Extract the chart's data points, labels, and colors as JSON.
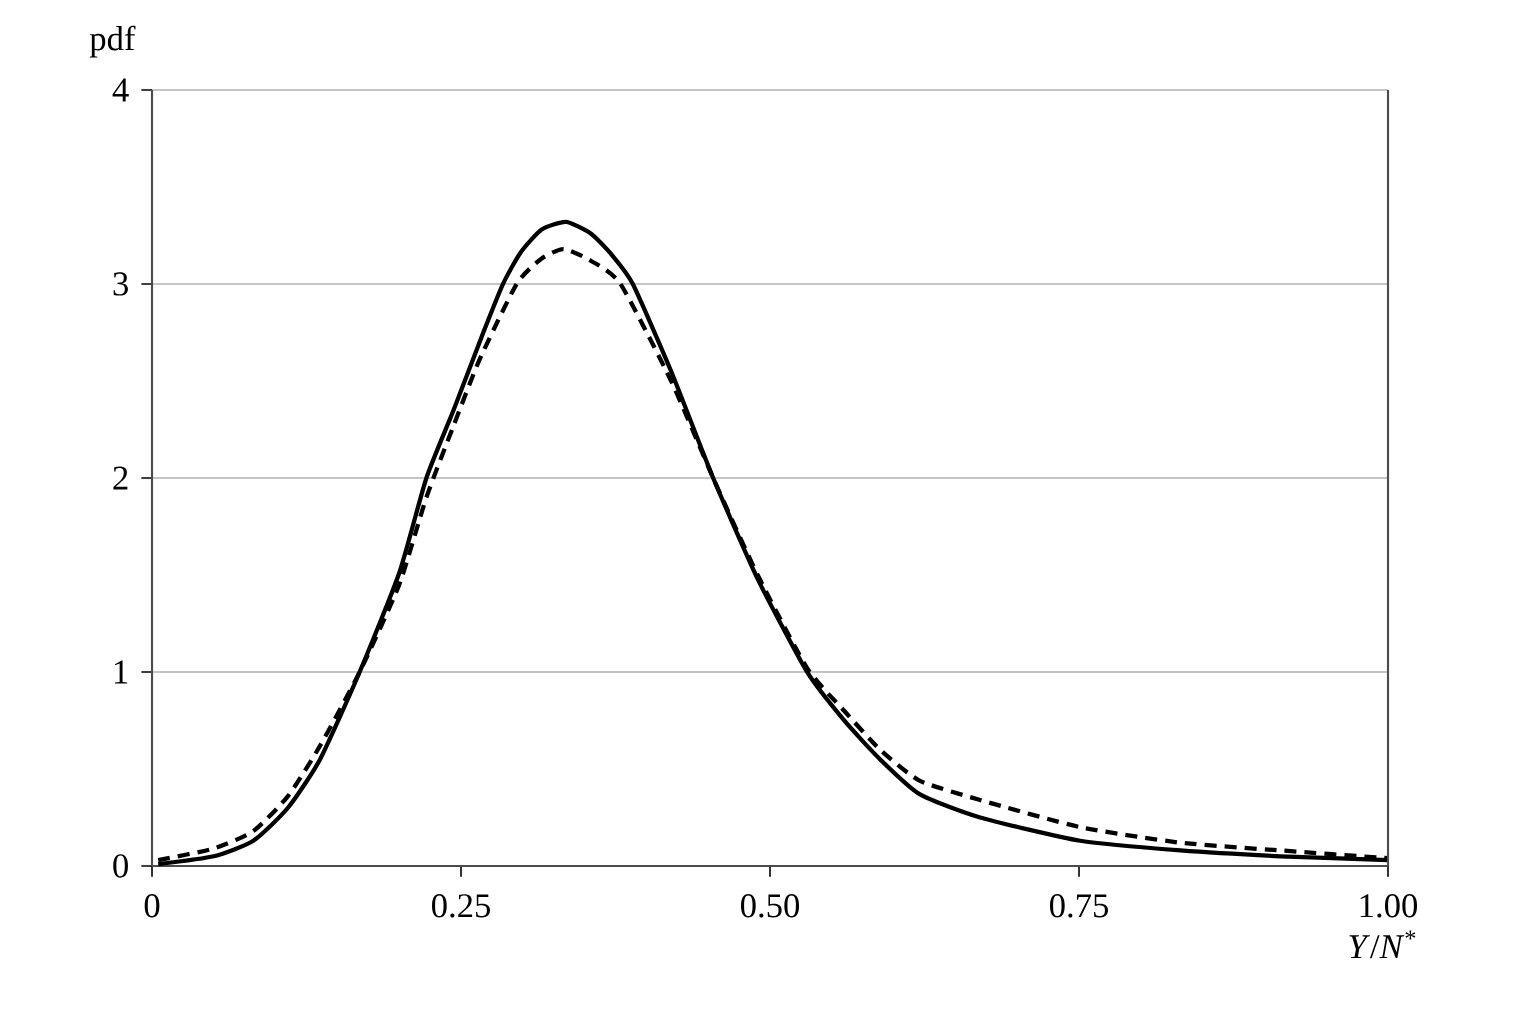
{
  "chart_data": {
    "type": "line",
    "xlabel": "*Y*/*N*$^{*}$",
    "ylabel": "pdf",
    "xlim": [
      0,
      1
    ],
    "ylim": [
      0,
      4
    ],
    "xticks": [
      0,
      0.25,
      {
        "value": 0.5,
        "label": "0.50"
      },
      0.75,
      {
        "value": 1,
        "label": "1.00"
      }
    ],
    "yticks": [
      0,
      1,
      2,
      3,
      4
    ],
    "grid": "y",
    "marker": "none",
    "series": [
      {
        "color": "#000000",
        "line_style": "solid",
        "x": [
          0.005,
          0.05,
          0.082,
          0.11,
          0.136,
          0.168,
          0.2,
          0.222,
          0.244,
          0.265,
          0.284,
          0.298,
          0.315,
          0.335,
          0.355,
          0.372,
          0.389,
          0.42,
          0.454,
          0.49,
          0.53,
          0.56,
          0.589,
          0.621,
          0.67,
          0.751,
          0.832,
          0.913,
          1.0
        ],
        "values": [
          0.01,
          0.05,
          0.13,
          0.3,
          0.55,
          1.0,
          1.51,
          2.0,
          2.35,
          2.7,
          3.0,
          3.16,
          3.28,
          3.32,
          3.26,
          3.15,
          3.0,
          2.55,
          2.0,
          1.48,
          1.0,
          0.75,
          0.55,
          0.37,
          0.25,
          0.13,
          0.08,
          0.05,
          0.03
        ]
      },
      {
        "color": "#000000",
        "line_style": "dashed",
        "x": [
          0.005,
          0.05,
          0.082,
          0.11,
          0.136,
          0.168,
          0.2,
          0.222,
          0.244,
          0.265,
          0.295,
          0.315,
          0.333,
          0.355,
          0.379,
          0.42,
          0.454,
          0.49,
          0.53,
          0.56,
          0.589,
          0.621,
          0.67,
          0.751,
          0.832,
          0.913,
          1.0
        ],
        "values": [
          0.03,
          0.09,
          0.18,
          0.36,
          0.62,
          1.0,
          1.45,
          1.9,
          2.27,
          2.61,
          3.0,
          3.13,
          3.18,
          3.12,
          3.0,
          2.5,
          2.0,
          1.5,
          1.02,
          0.8,
          0.6,
          0.44,
          0.34,
          0.2,
          0.12,
          0.08,
          0.04
        ]
      }
    ]
  }
}
